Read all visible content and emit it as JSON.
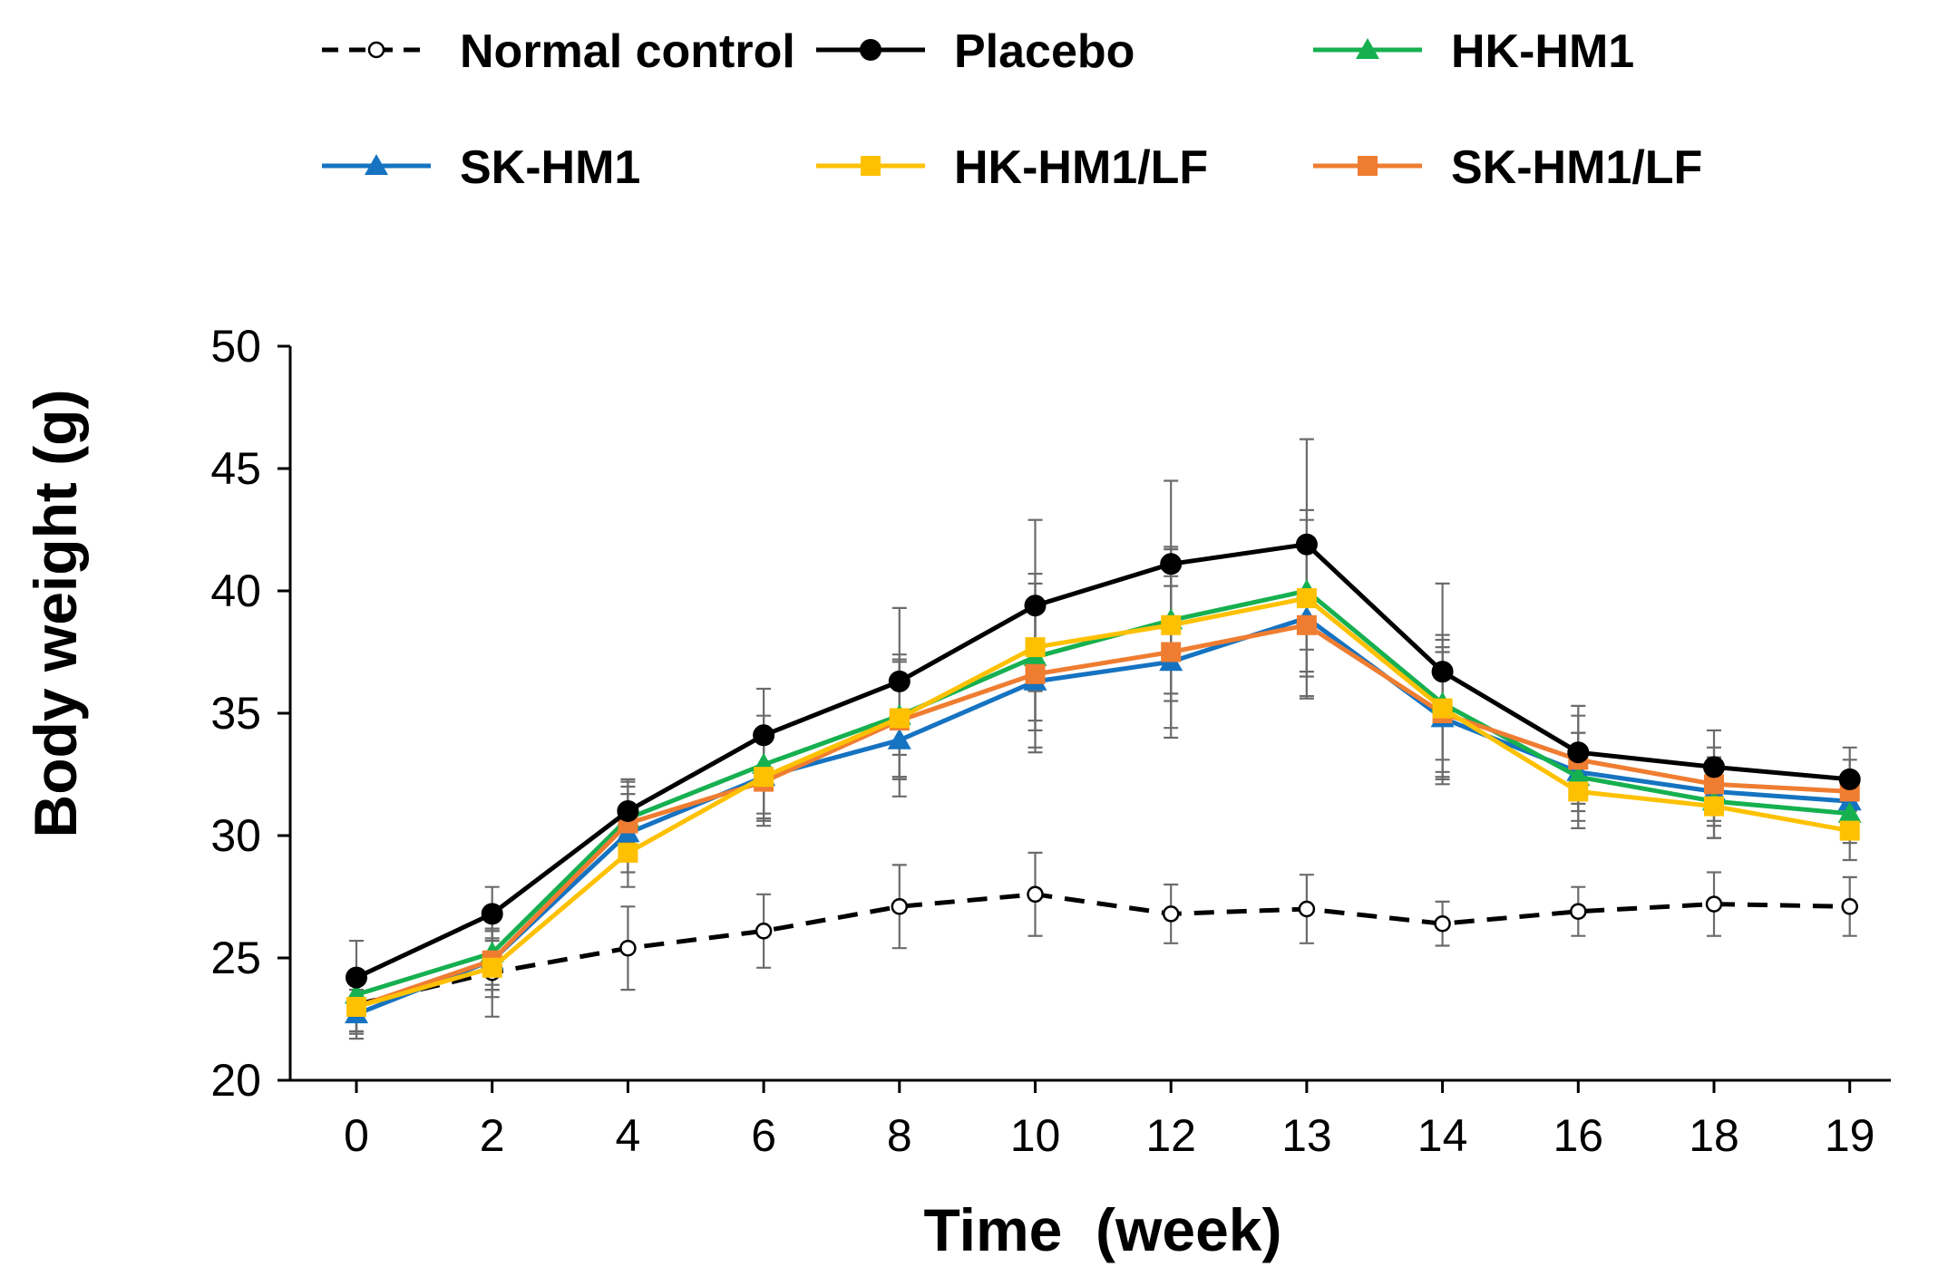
{
  "chart_data": {
    "type": "line",
    "title": "",
    "xlabel": "Time  (week)",
    "ylabel": "Body weight (g)",
    "categories": [
      "0",
      "2",
      "4",
      "6",
      "8",
      "10",
      "12",
      "13",
      "14",
      "16",
      "18",
      "19"
    ],
    "ylim": [
      20,
      50
    ],
    "yticks": [
      20,
      25,
      30,
      35,
      40,
      45,
      50
    ],
    "legend_position": "top",
    "series": [
      {
        "name": "Normal control",
        "color": "#000000",
        "dash": true,
        "marker": "circle-open",
        "values": [
          23.1,
          24.4,
          25.4,
          26.1,
          27.1,
          27.6,
          26.8,
          27.0,
          26.4,
          26.9,
          27.2,
          27.1
        ],
        "errors": [
          1.2,
          1.8,
          1.7,
          1.5,
          1.7,
          1.7,
          1.2,
          1.4,
          0.9,
          1.0,
          1.3,
          1.2
        ]
      },
      {
        "name": "Placebo",
        "color": "#000000",
        "dash": false,
        "marker": "circle",
        "values": [
          24.2,
          26.8,
          31.0,
          34.1,
          36.3,
          39.4,
          41.1,
          41.9,
          36.7,
          33.4,
          32.8,
          32.3
        ],
        "errors": [
          1.5,
          1.1,
          1.3,
          1.9,
          3.0,
          3.5,
          3.4,
          4.3,
          3.6,
          1.9,
          1.5,
          1.3
        ]
      },
      {
        "name": "HK-HM1",
        "color": "#16b050",
        "dash": false,
        "marker": "triangle",
        "values": [
          23.5,
          25.2,
          30.7,
          32.9,
          34.9,
          37.3,
          38.8,
          40.0,
          35.4,
          32.4,
          31.4,
          30.9
        ],
        "errors": [
          1.0,
          1.3,
          1.5,
          2.0,
          2.5,
          3.0,
          3.0,
          3.3,
          2.8,
          1.8,
          1.5,
          1.2
        ]
      },
      {
        "name": "SK-HM1",
        "color": "#1573c1",
        "dash": false,
        "marker": "triangle",
        "values": [
          22.7,
          24.9,
          30.1,
          32.4,
          33.9,
          36.3,
          37.1,
          38.9,
          34.8,
          32.6,
          31.8,
          31.4
        ],
        "errors": [
          1.0,
          1.2,
          1.6,
          1.8,
          2.3,
          2.9,
          3.1,
          3.2,
          2.7,
          1.6,
          1.4,
          1.2
        ]
      },
      {
        "name": "HK-HM1/LF",
        "color": "#fec102",
        "dash": false,
        "marker": "square",
        "values": [
          23.0,
          24.6,
          29.3,
          32.4,
          34.8,
          37.7,
          38.6,
          39.7,
          35.2,
          31.8,
          31.2,
          30.2
        ],
        "errors": [
          1.0,
          1.2,
          1.4,
          1.7,
          2.4,
          3.0,
          3.1,
          3.2,
          2.8,
          1.5,
          1.3,
          1.2
        ]
      },
      {
        "name": "SK-HM1/LF",
        "color": "#ef7d31",
        "dash": false,
        "marker": "square",
        "values": [
          23.0,
          24.9,
          30.5,
          32.2,
          34.7,
          36.6,
          37.5,
          38.6,
          35.0,
          33.1,
          32.1,
          31.8
        ],
        "errors": [
          1.0,
          1.2,
          1.5,
          1.8,
          2.4,
          3.0,
          3.1,
          3.0,
          2.7,
          1.8,
          1.5,
          1.3
        ]
      }
    ]
  }
}
